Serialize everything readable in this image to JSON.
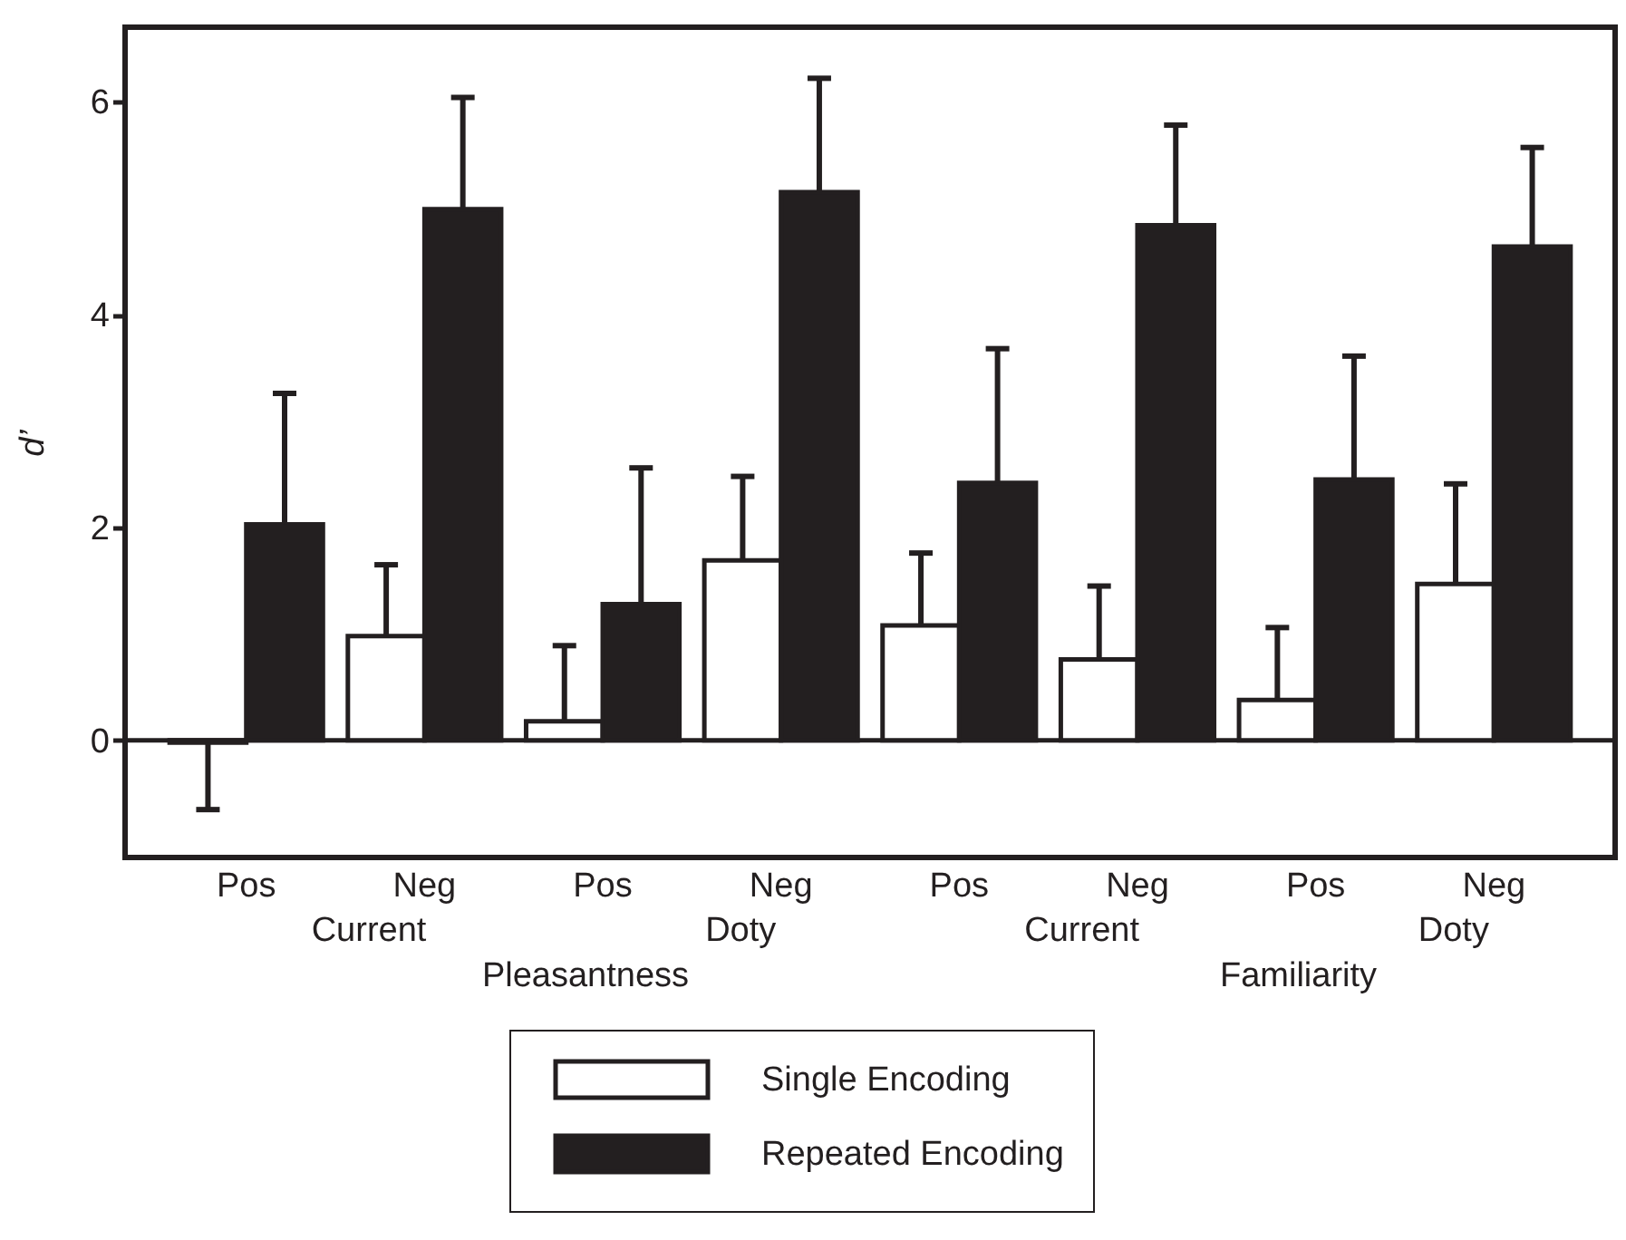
{
  "chart_data": {
    "type": "bar",
    "ylabel": "d’",
    "categories": [
      "Pos",
      "Neg",
      "Pos",
      "Neg",
      "Pos",
      "Neg",
      "Pos",
      "Neg"
    ],
    "series": [
      {
        "name": "Single Encoding",
        "color": "#ffffff",
        "values": [
          -0.02,
          0.98,
          0.18,
          1.69,
          1.08,
          0.76,
          0.38,
          1.47
        ],
        "errors": [
          0.63,
          0.67,
          0.71,
          0.79,
          0.68,
          0.69,
          0.68,
          0.94
        ]
      },
      {
        "name": "Repeated Encoding",
        "color": "#231f20",
        "values": [
          2.03,
          4.99,
          1.28,
          5.15,
          2.42,
          4.84,
          2.45,
          4.64
        ],
        "errors": [
          1.23,
          1.05,
          1.28,
          1.07,
          1.26,
          0.94,
          1.16,
          0.93
        ]
      }
    ],
    "ylim": [
      -1.1,
      6.7
    ],
    "yticks": [
      0,
      2,
      4,
      6
    ],
    "ref_lines": [
      {
        "axis": "y",
        "value": 0,
        "color": "#231f20"
      }
    ],
    "annotations": [
      "Current",
      "Pleasantness",
      "Doty",
      "Current",
      "Familiarity",
      "Doty"
    ],
    "legend": "bottom"
  }
}
